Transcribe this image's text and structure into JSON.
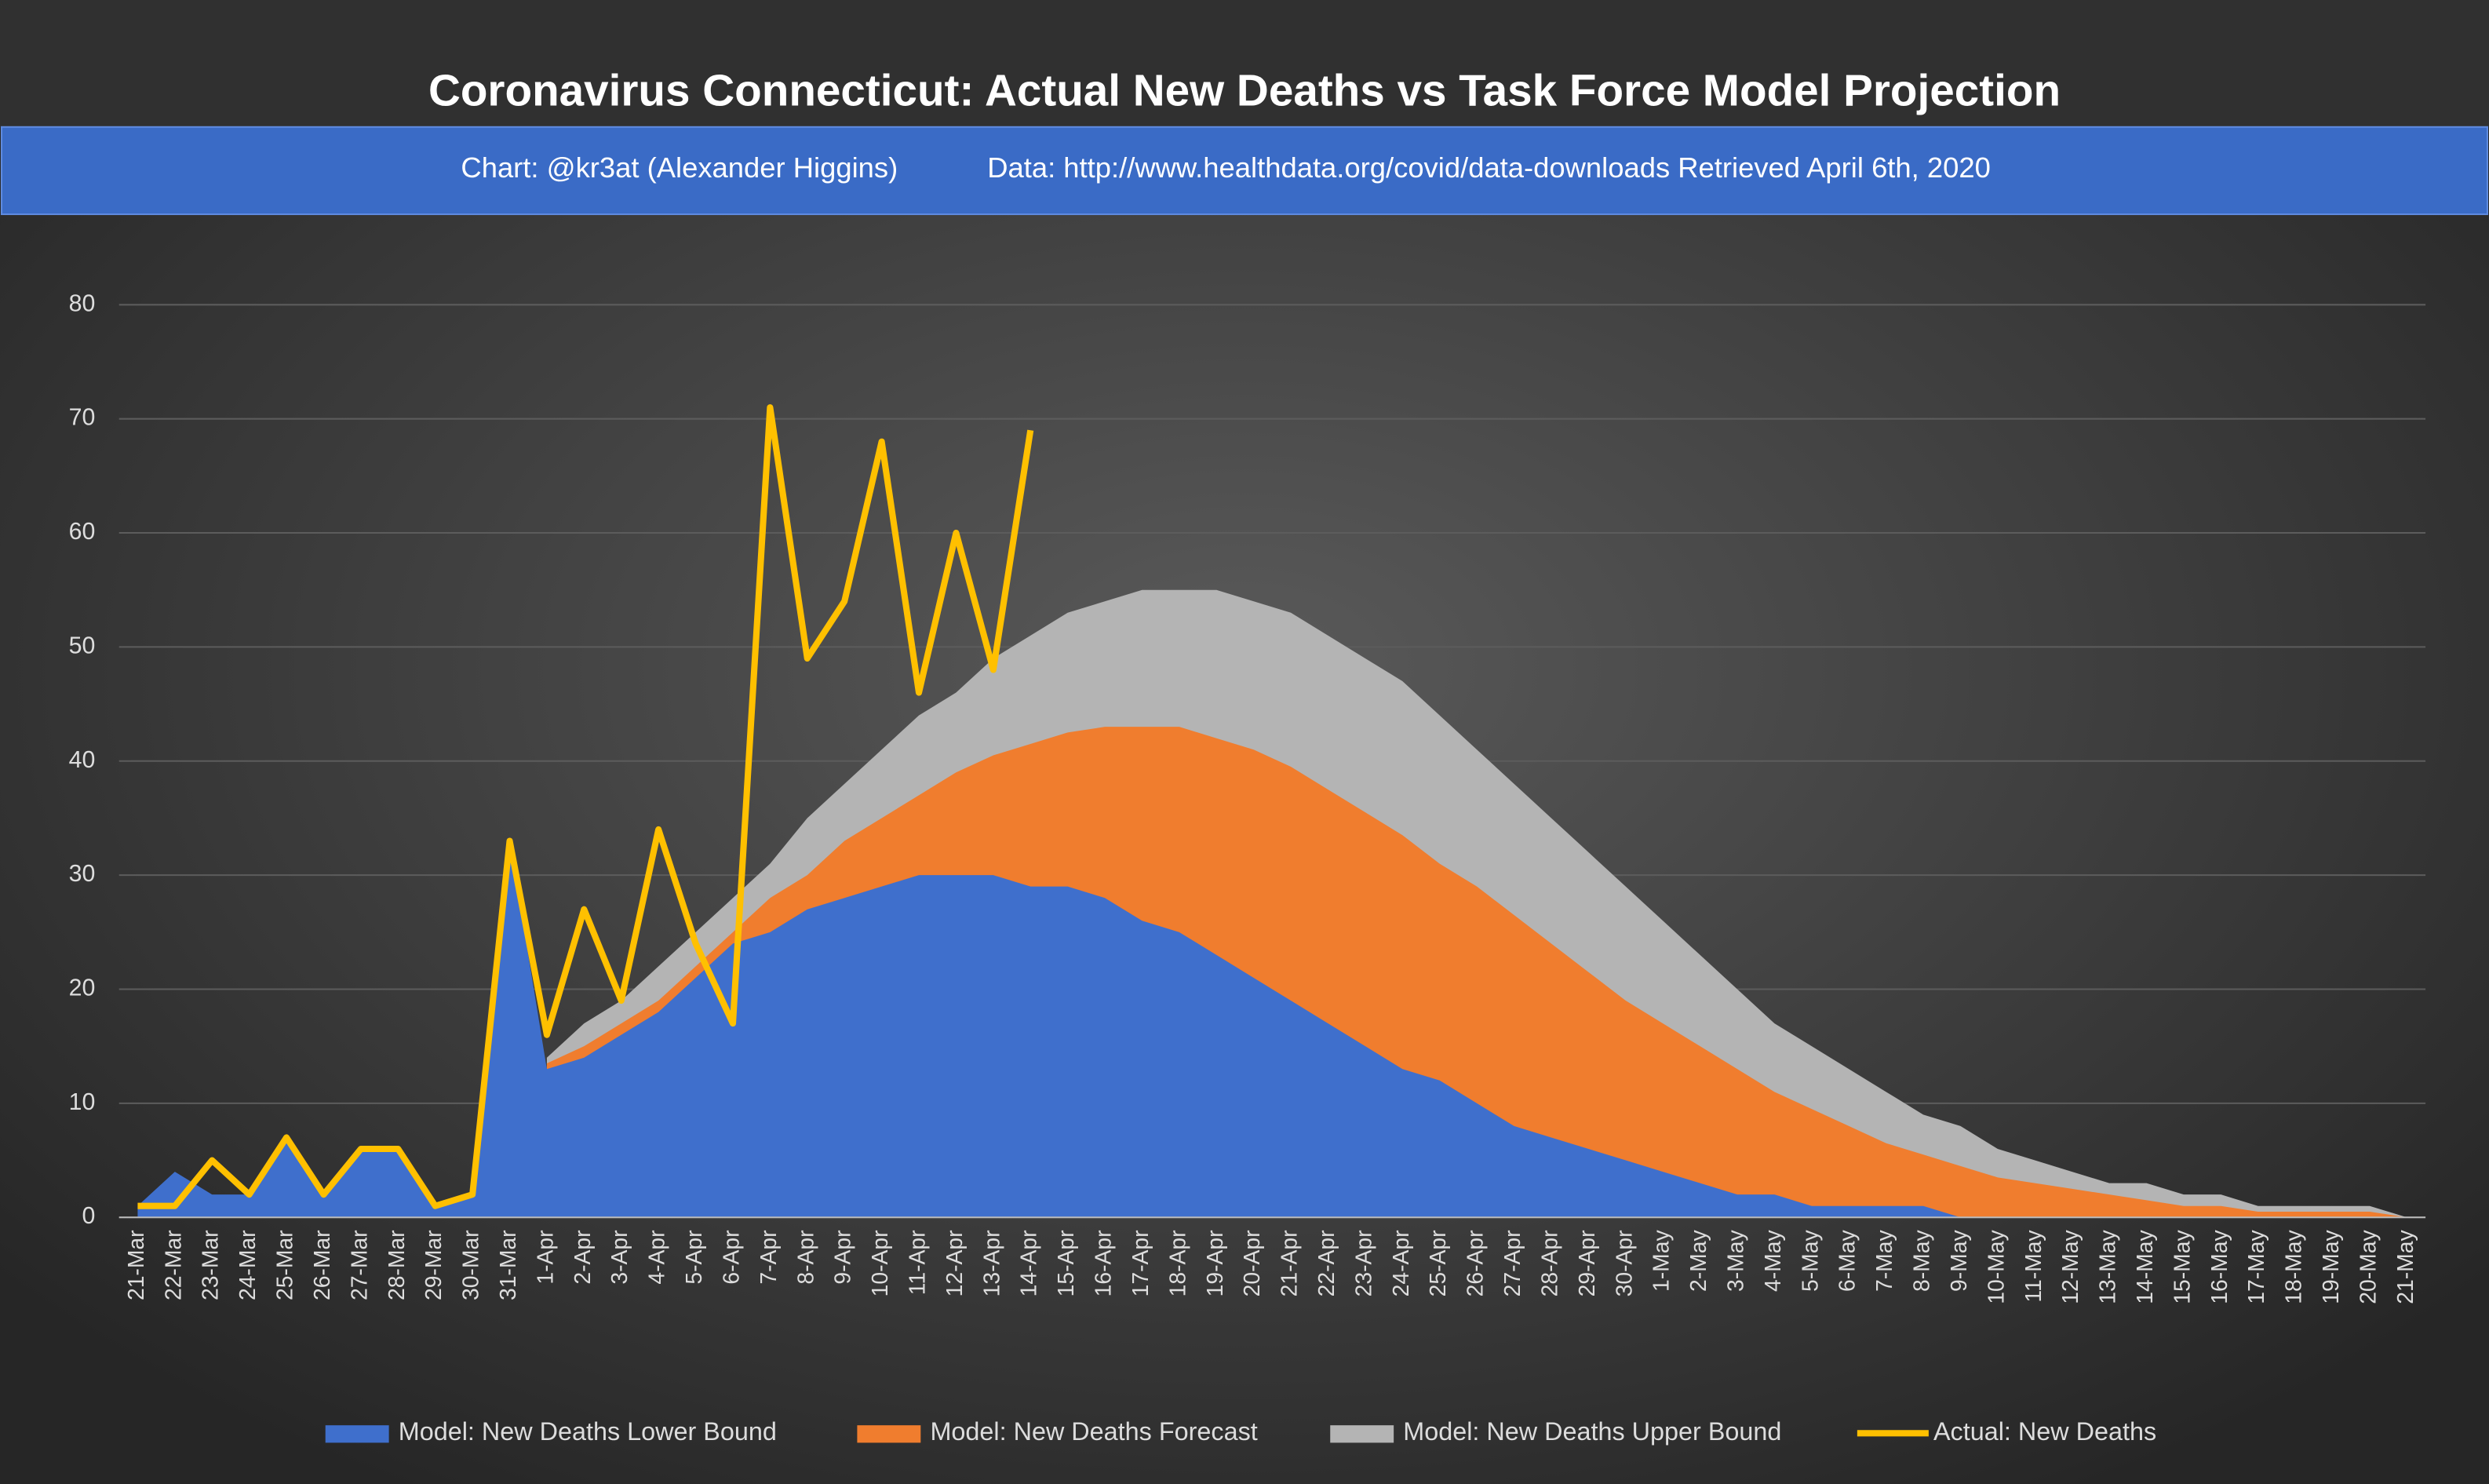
{
  "chart_data": {
    "type": "area",
    "title": "Coronavirus Connecticut: Actual New Deaths vs Task Force Model Projection",
    "subtitle": "Chart: @kr3at (Alexander Higgins)",
    "source": "Data: http://www.healthdata.org/covid/data-downloads Retrieved April 6th, 2020",
    "categories": [
      "21-Mar",
      "22-Mar",
      "23-Mar",
      "24-Mar",
      "25-Mar",
      "26-Mar",
      "27-Mar",
      "28-Mar",
      "29-Mar",
      "30-Mar",
      "31-Mar",
      "1-Apr",
      "2-Apr",
      "3-Apr",
      "4-Apr",
      "5-Apr",
      "6-Apr",
      "7-Apr",
      "8-Apr",
      "9-Apr",
      "10-Apr",
      "11-Apr",
      "12-Apr",
      "13-Apr",
      "14-Apr",
      "15-Apr",
      "16-Apr",
      "17-Apr",
      "18-Apr",
      "19-Apr",
      "20-Apr",
      "21-Apr",
      "22-Apr",
      "23-Apr",
      "24-Apr",
      "25-Apr",
      "26-Apr",
      "27-Apr",
      "28-Apr",
      "29-Apr",
      "30-Apr",
      "1-May",
      "2-May",
      "3-May",
      "4-May",
      "5-May",
      "6-May",
      "7-May",
      "8-May",
      "9-May",
      "10-May",
      "11-May",
      "12-May",
      "13-May",
      "14-May",
      "15-May",
      "16-May",
      "17-May",
      "18-May",
      "19-May",
      "20-May",
      "21-May"
    ],
    "series": [
      {
        "name": "Model: New Deaths Upper Bound",
        "color": "#b4b4b4",
        "kind": "area",
        "values": [
          null,
          null,
          null,
          null,
          null,
          null,
          null,
          null,
          null,
          null,
          null,
          14,
          17,
          19,
          22,
          25,
          28,
          31,
          35,
          38,
          41,
          44,
          46,
          49,
          51,
          53,
          54,
          55,
          55,
          55,
          54,
          53,
          51,
          49,
          47,
          44,
          41,
          38,
          35,
          32,
          29,
          26,
          23,
          20,
          17,
          15,
          13,
          11,
          9,
          8,
          6,
          5,
          4,
          3,
          3,
          2,
          2,
          1,
          1,
          1,
          1,
          0
        ]
      },
      {
        "name": "Model: New Deaths Forecast",
        "color": "#f07d2e",
        "kind": "area",
        "values": [
          null,
          null,
          null,
          null,
          null,
          null,
          null,
          null,
          null,
          null,
          null,
          13.5,
          15,
          17,
          19,
          22,
          25,
          28,
          30,
          33,
          35,
          37,
          39,
          40.5,
          41.5,
          42.5,
          43,
          43,
          43,
          42,
          41,
          39.5,
          37.5,
          35.5,
          33.5,
          31,
          29,
          26.5,
          24,
          21.5,
          19,
          17,
          15,
          13,
          11,
          9.5,
          8,
          6.5,
          5.5,
          4.5,
          3.5,
          3,
          2.5,
          2,
          1.5,
          1,
          1,
          0.5,
          0.5,
          0.5,
          0.5,
          0
        ]
      },
      {
        "name": "Model: New Deaths Lower Bound",
        "color": "#3f6fcc",
        "kind": "area",
        "values": [
          1,
          4,
          2,
          2,
          7,
          2,
          6,
          6,
          1,
          2,
          33,
          13,
          14,
          16,
          18,
          21,
          24,
          25,
          27,
          28,
          29,
          30,
          30,
          30,
          29,
          29,
          28,
          26,
          25,
          23,
          21,
          19,
          17,
          15,
          13,
          12,
          10,
          8,
          7,
          6,
          5,
          4,
          3,
          2,
          2,
          1,
          1,
          1,
          1,
          0,
          0,
          0,
          0,
          0,
          0,
          0,
          0,
          0,
          0,
          0,
          0,
          0
        ]
      },
      {
        "name": "Actual: New Deaths",
        "color": "#ffc000",
        "kind": "line",
        "values": [
          1,
          1,
          5,
          2,
          7,
          2,
          6,
          6,
          1,
          2,
          33,
          16,
          27,
          19,
          34,
          24,
          17,
          71,
          49,
          54,
          68,
          46,
          60,
          48,
          69,
          null,
          null,
          null,
          null,
          null,
          null,
          null,
          null,
          null,
          null,
          null,
          null,
          null,
          null,
          null,
          null,
          null,
          null,
          null,
          null,
          null,
          null,
          null,
          null,
          null,
          null,
          null,
          null,
          null,
          null,
          null,
          null,
          null,
          null,
          null,
          null,
          null
        ]
      }
    ],
    "legend_order": [
      2,
      1,
      0,
      3
    ],
    "ylim": [
      0,
      80
    ],
    "yticks": [
      0,
      10,
      20,
      30,
      40,
      50,
      60,
      70,
      80
    ],
    "grid": true,
    "legend": "bottom"
  }
}
